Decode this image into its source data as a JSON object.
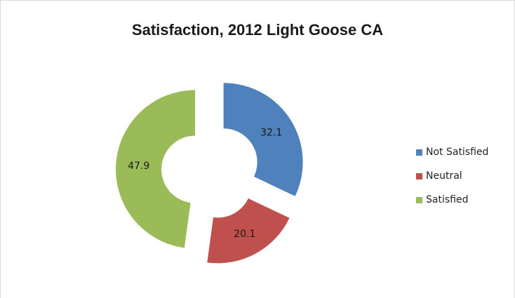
{
  "chart_data": {
    "type": "pie",
    "variant": "exploded-doughnut",
    "title": "Satisfaction, 2012 Light Goose CA",
    "categories": [
      "Not Satisfied",
      "Neutral",
      "Satisfied"
    ],
    "values": [
      32.1,
      20.1,
      47.9
    ],
    "labels": [
      "32.1",
      "20.1",
      "47.9"
    ],
    "colors": [
      "#4f81bd",
      "#c0504d",
      "#9bbb59"
    ],
    "legend_position": "right"
  }
}
